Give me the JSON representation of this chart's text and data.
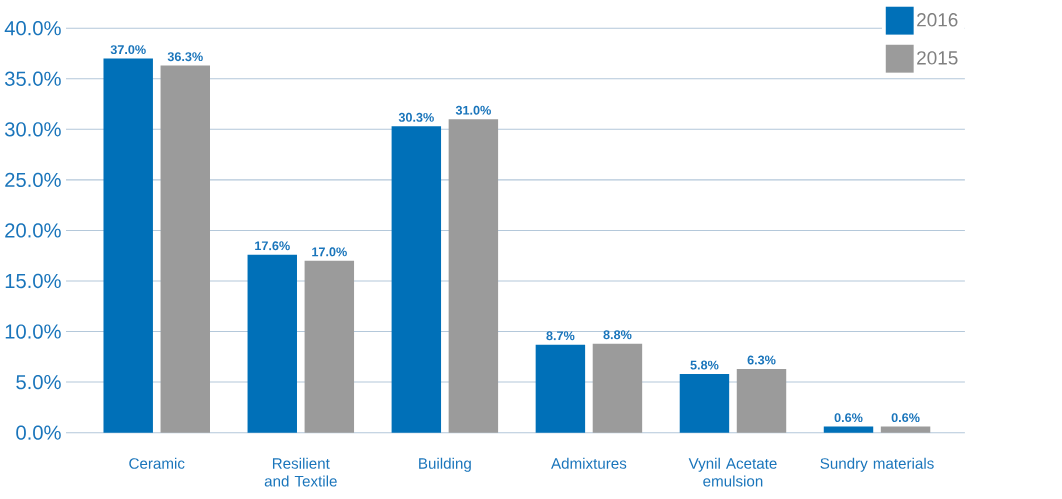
{
  "chart_data": {
    "type": "bar",
    "categories": [
      "Ceramic",
      "Resilient and Textile",
      "Building",
      "Admixtures",
      "Vynil Acetate emulsion",
      "Sundry materials"
    ],
    "series": [
      {
        "name": "2016",
        "color": "#0070b8",
        "values": [
          37.0,
          17.6,
          30.3,
          8.7,
          5.8,
          0.6
        ],
        "value_labels": [
          "37.0%",
          "17.6%",
          "30.3%",
          "8.7%",
          "5.8%",
          "0.6%"
        ]
      },
      {
        "name": "2015",
        "color": "#9b9b9b",
        "values": [
          36.3,
          17.0,
          31.0,
          8.8,
          6.3,
          0.6
        ],
        "value_labels": [
          "36.3%",
          "17.0%",
          "31.0%",
          "8.8%",
          "6.3%",
          "0.6%"
        ]
      }
    ],
    "ylim": [
      0,
      40
    ],
    "yticks": [
      {
        "value": 0,
        "label": "0.0%"
      },
      {
        "value": 5,
        "label": "5.0%"
      },
      {
        "value": 10,
        "label": "10.0%"
      },
      {
        "value": 15,
        "label": "15.0%"
      },
      {
        "value": 20,
        "label": "20.0%"
      },
      {
        "value": 25,
        "label": "25.0%"
      },
      {
        "value": 30,
        "label": "30.0%"
      },
      {
        "value": 35,
        "label": "35.0%"
      },
      {
        "value": 40,
        "label": "40.0%"
      }
    ],
    "grid": "y",
    "legend": "top right"
  }
}
